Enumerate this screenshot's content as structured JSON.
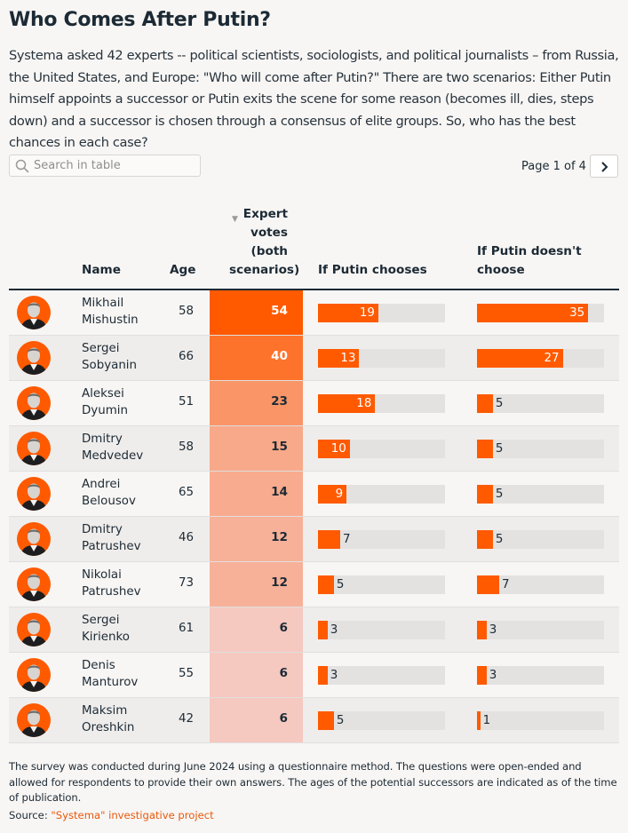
{
  "title": "Who Comes After Putin?",
  "intro": "Systema asked 42 experts -- political scientists, sociologists, and political journalists – from Russia, the United States, and Europe: \"Who will come after Putin?\" There are two scenarios: Either Putin himself appoints a successor or Putin exits the scene for some reason (becomes ill, dies, steps down) and a successor is chosen through a consensus of elite groups. So, who has the best chances in each case?",
  "search": {
    "placeholder": "Search in table",
    "icon": "search-icon"
  },
  "pager": {
    "label": "Page 1 of 4",
    "next_icon": "chevron-right-icon"
  },
  "footer": {
    "note": "The survey was conducted during June 2024 using a questionnaire method. The questions were open-ended and allowed for respondents to provide their own answers. The ages of the potential successors are indicated as of the time of publication.",
    "source_label": "Source:",
    "source_link": "\"Systema\" investigative project"
  },
  "chart_data": {
    "type": "table",
    "columns": [
      "Name",
      "Age",
      "Expert votes (both scenarios)",
      "If Putin chooses",
      "If Putin doesn't choose"
    ],
    "sorted_by": "Expert votes (both scenarios)",
    "sort_direction": "descending",
    "accent_color": "#ff5a00",
    "track_color": "#e3e2e1",
    "bar_scale_max": 40,
    "rows": [
      {
        "first": "Mikhail",
        "last": "Mishustin",
        "age": 58,
        "votes": 54,
        "if_chooses": 19,
        "if_not": 35
      },
      {
        "first": "Sergei",
        "last": "Sobyanin",
        "age": 66,
        "votes": 40,
        "if_chooses": 13,
        "if_not": 27
      },
      {
        "first": "Aleksei",
        "last": "Dyumin",
        "age": 51,
        "votes": 23,
        "if_chooses": 18,
        "if_not": 5
      },
      {
        "first": "Dmitry",
        "last": "Medvedev",
        "age": 58,
        "votes": 15,
        "if_chooses": 10,
        "if_not": 5
      },
      {
        "first": "Andrei",
        "last": "Belousov",
        "age": 65,
        "votes": 14,
        "if_chooses": 9,
        "if_not": 5
      },
      {
        "first": "Dmitry",
        "last": "Patrushev",
        "age": 46,
        "votes": 12,
        "if_chooses": 7,
        "if_not": 5
      },
      {
        "first": "Nikolai",
        "last": "Patrushev",
        "age": 73,
        "votes": 12,
        "if_chooses": 5,
        "if_not": 7
      },
      {
        "first": "Sergei",
        "last": "Kirienko",
        "age": 61,
        "votes": 6,
        "if_chooses": 3,
        "if_not": 3
      },
      {
        "first": "Denis",
        "last": "Manturov",
        "age": 55,
        "votes": 6,
        "if_chooses": 3,
        "if_not": 3
      },
      {
        "first": "Maksim",
        "last": "Oreshkin",
        "age": 42,
        "votes": 6,
        "if_chooses": 5,
        "if_not": 1
      }
    ]
  }
}
